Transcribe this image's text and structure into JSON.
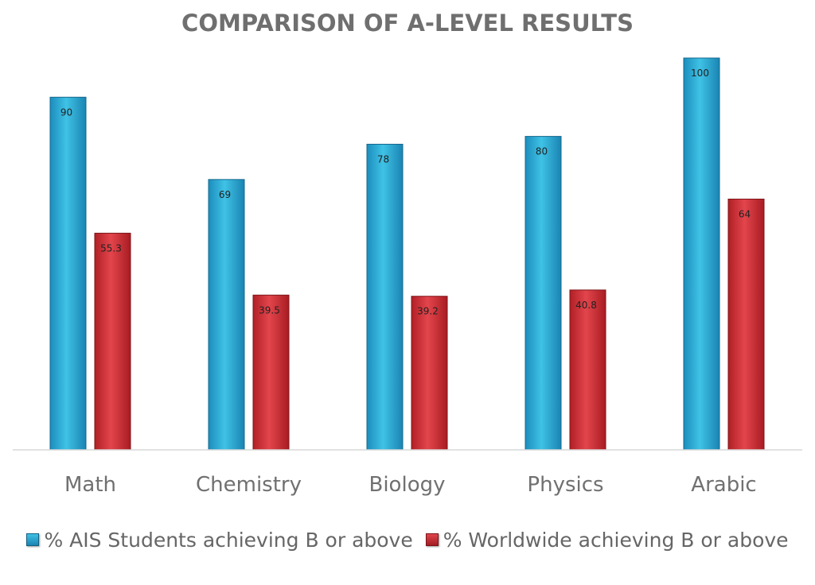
{
  "chart_data": {
    "type": "bar",
    "title": "COMPARISON OF A-LEVEL RESULTS",
    "xlabel": "",
    "ylabel": "",
    "ylim": [
      0,
      100
    ],
    "grid": false,
    "legend_position": "bottom",
    "categories": [
      "Math",
      "Chemistry",
      "Biology",
      "Physics",
      "Arabic"
    ],
    "series": [
      {
        "name": "% AIS Students achieving B or above",
        "color": "#2aa3d0",
        "values": [
          90,
          69,
          78,
          80,
          100
        ],
        "labels": [
          "90",
          "69",
          "78",
          "80",
          "100"
        ]
      },
      {
        "name": "% Worldwide achieving B or above",
        "color": "#c9272d",
        "values": [
          55.3,
          39.5,
          39.2,
          40.8,
          64
        ],
        "labels": [
          "55.3",
          "39.5",
          "39.2",
          "40.8",
          "64"
        ]
      }
    ]
  }
}
